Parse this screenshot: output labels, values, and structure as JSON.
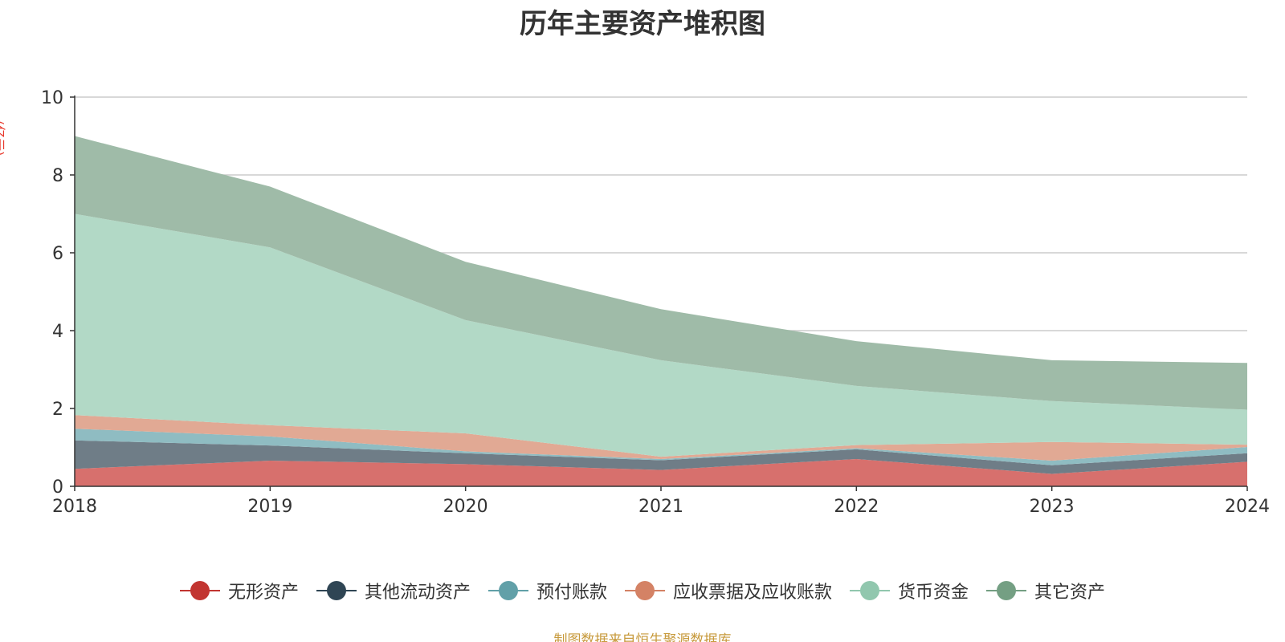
{
  "chart_data": {
    "type": "area",
    "title": "历年主要资产堆积图",
    "unit_label": "(亿元)",
    "stacked": true,
    "x": [
      "2018",
      "2019",
      "2020",
      "2021",
      "2022",
      "2023",
      "2024"
    ],
    "ylim": [
      0,
      10
    ],
    "yticks": [
      0,
      2,
      4,
      6,
      8,
      10
    ],
    "grid": true,
    "legend_position": "bottom",
    "series": [
      {
        "name": "无形资产",
        "color": "#c23531",
        "fill": "#d7706d",
        "values": [
          0.45,
          0.66,
          0.57,
          0.42,
          0.7,
          0.32,
          0.63
        ]
      },
      {
        "name": "其他流动资产",
        "color": "#2f4554",
        "fill": "#6f7d87",
        "values": [
          0.73,
          0.39,
          0.28,
          0.25,
          0.25,
          0.22,
          0.22
        ]
      },
      {
        "name": "预付账款",
        "color": "#61a0a8",
        "fill": "#8fbcc2",
        "values": [
          0.3,
          0.23,
          0.05,
          0.03,
          0.03,
          0.12,
          0.16
        ]
      },
      {
        "name": "应收票据及应收账款",
        "color": "#d48265",
        "fill": "#e1a994",
        "values": [
          0.35,
          0.29,
          0.46,
          0.06,
          0.08,
          0.48,
          0.06
        ]
      },
      {
        "name": "货币资金",
        "color": "#91c7ae",
        "fill": "#b2d9c6",
        "values": [
          5.17,
          4.57,
          2.91,
          2.48,
          1.52,
          1.05,
          0.9
        ]
      },
      {
        "name": "其它资产",
        "color": "#749f83",
        "fill": "#9fbba8",
        "values": [
          2.0,
          1.56,
          1.5,
          1.31,
          1.15,
          1.05,
          1.2
        ]
      }
    ]
  },
  "source_note": "制图数据来自恒生聚源数据库"
}
